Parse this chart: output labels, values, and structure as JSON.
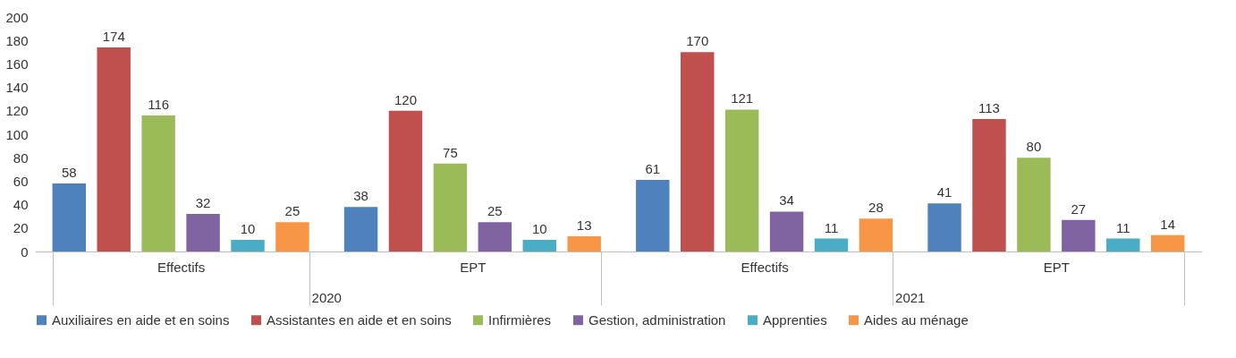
{
  "chart_data": {
    "type": "bar",
    "categories": [
      "Effectifs",
      "EPT",
      "Effectifs",
      "EPT"
    ],
    "annotations": [
      "2020",
      "2021"
    ],
    "series": [
      {
        "name": "Auxiliaires en aide et en soins",
        "color": "#4f81bd",
        "values": [
          58,
          38,
          61,
          41
        ]
      },
      {
        "name": "Assistantes en aide et en soins",
        "color": "#c0504d",
        "values": [
          174,
          120,
          170,
          113
        ]
      },
      {
        "name": "Infirmières",
        "color": "#9bbb59",
        "values": [
          116,
          75,
          121,
          80
        ]
      },
      {
        "name": "Gestion, administration",
        "color": "#8064a2",
        "values": [
          32,
          25,
          34,
          27
        ]
      },
      {
        "name": "Apprenties",
        "color": "#4bacc6",
        "values": [
          10,
          10,
          11,
          11
        ]
      },
      {
        "name": "Aides au ménage",
        "color": "#f79646",
        "values": [
          25,
          13,
          28,
          14
        ]
      }
    ],
    "ylim": [
      0,
      200
    ],
    "yticks": [
      0,
      20,
      40,
      60,
      80,
      100,
      120,
      140,
      160,
      180,
      200
    ],
    "data_labels": true,
    "legend": "bottom",
    "grid": false
  }
}
